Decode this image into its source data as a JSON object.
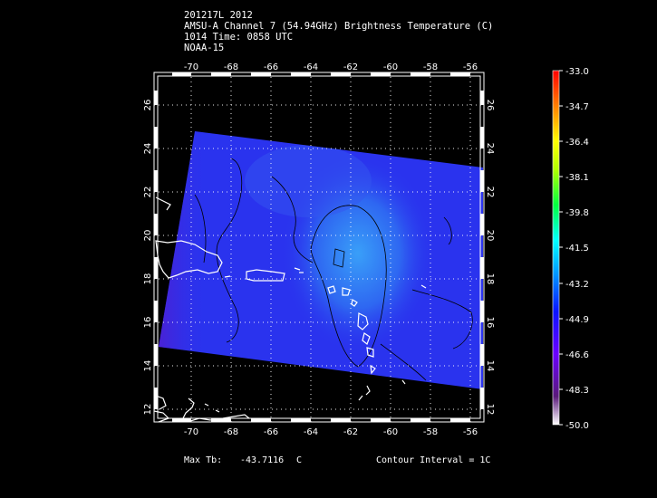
{
  "header": {
    "line1": "201217L 2012",
    "line2": "AMSU-A Channel 7 (54.94GHz) Brightness Temperature (C)",
    "line3": "1014 Time: 0858 UTC",
    "line4": "NOAA-15"
  },
  "map": {
    "lon_ticks": [
      "-70",
      "-68",
      "-66",
      "-64",
      "-62",
      "-60",
      "-58",
      "-56"
    ],
    "lat_ticks": [
      "26",
      "24",
      "22",
      "20",
      "18",
      "16",
      "14",
      "12"
    ],
    "lon_range": [
      -71.8,
      -55.8
    ],
    "lat_range": [
      11.7,
      27.7
    ],
    "swath_color": "#2a33ee",
    "warm_core_color": "#38a8f8"
  },
  "colorbar": {
    "labels": [
      "-33.0",
      "-34.7",
      "-36.4",
      "-38.1",
      "-39.8",
      "-41.5",
      "-43.2",
      "-44.9",
      "-46.6",
      "-48.3",
      "-50.0"
    ],
    "colors": [
      "#ff0000",
      "#ff7f00",
      "#ffff00",
      "#00ff00",
      "#00ffff",
      "#0000ff",
      "#7f00ff",
      "#ffffff"
    ]
  },
  "footer": {
    "max_tb_label": "Max Tb:",
    "max_tb_value": "-43.7116",
    "max_tb_unit": "C",
    "contour": "Contour Interval = 1C"
  }
}
